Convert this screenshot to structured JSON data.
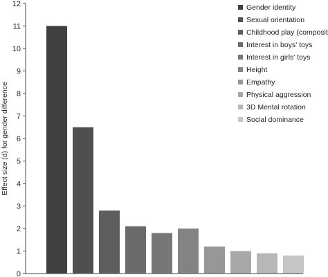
{
  "chart_data": {
    "type": "bar",
    "title": "",
    "xlabel": "",
    "ylabel": "Effect size (d) for gender difference",
    "ylim": [
      0,
      12
    ],
    "yticks": [
      0,
      1,
      2,
      3,
      4,
      5,
      6,
      7,
      8,
      9,
      10,
      11,
      12
    ],
    "grid": false,
    "legend_position": "top-right",
    "categories": [
      "Gender identity",
      "Sexual orientation",
      "Childhood play (composite)",
      "Interest in boys' toys",
      "Interest in girls' toys",
      "Height",
      "Empathy",
      "Physical aggression",
      "3D Mental rotation",
      "Social dominance"
    ],
    "values": [
      11.0,
      6.5,
      2.8,
      2.1,
      1.8,
      2.0,
      1.2,
      1.0,
      0.9,
      0.8
    ],
    "colors": [
      "#404040",
      "#4f4f4f",
      "#5e5e5e",
      "#6b6b6b",
      "#777777",
      "#838383",
      "#979797",
      "#a8a8a8",
      "#b7b7b7",
      "#c6c6c6"
    ]
  }
}
